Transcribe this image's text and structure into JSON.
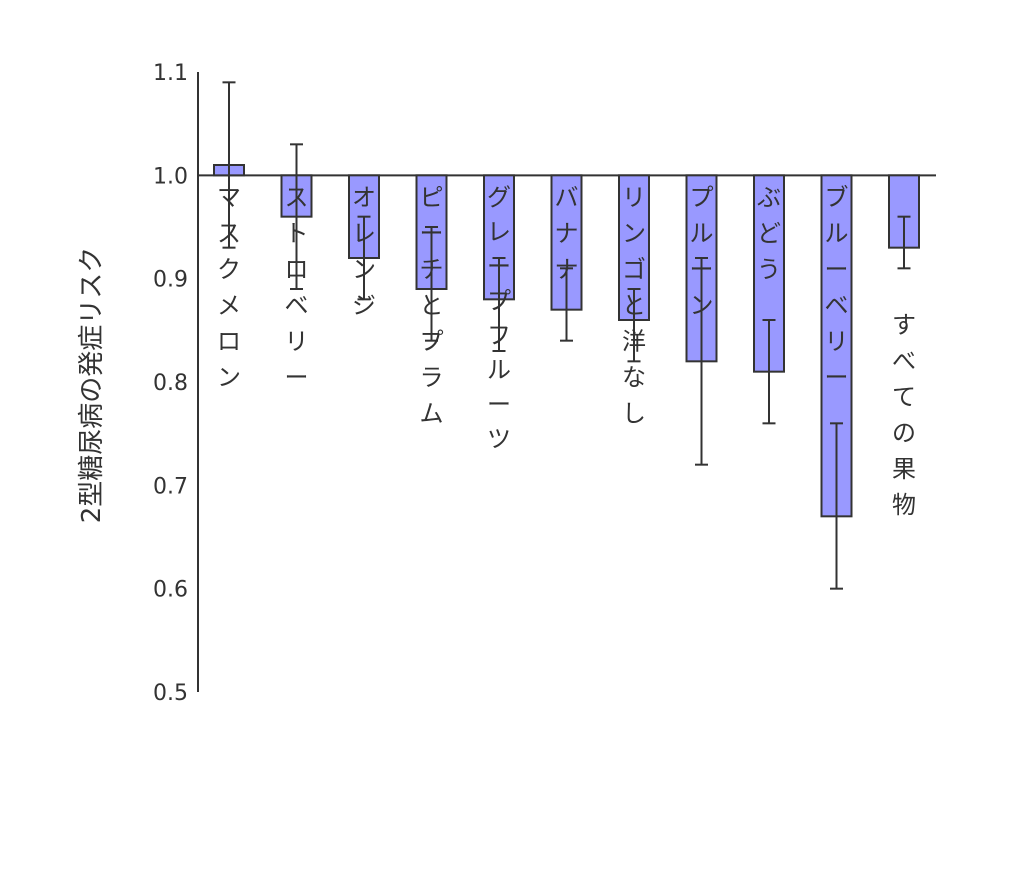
{
  "chart_data": {
    "type": "bar",
    "title": "",
    "xlabel": "",
    "ylabel": "2型糖尿病の発症リスク",
    "ylim": [
      0.5,
      1.1
    ],
    "yticks": [
      "0.5",
      "0.6",
      "0.7",
      "0.8",
      "0.9",
      "1.0",
      "1.1"
    ],
    "baseline": 1.0,
    "grid": false,
    "bar_color": "#9999ff",
    "categories": [
      "マスクメロン",
      "ストロベリー",
      "オレンジ",
      "ピーチとプラム",
      "グレープフルーツ",
      "バナナ",
      "リンゴと洋なし",
      "プルーン",
      "ぶどう",
      "ブルーベリー",
      "すべての果物"
    ],
    "values": [
      1.01,
      0.96,
      0.92,
      0.89,
      0.88,
      0.87,
      0.86,
      0.82,
      0.81,
      0.67,
      0.93
    ],
    "error_low": [
      0.93,
      0.89,
      0.88,
      0.84,
      0.83,
      0.84,
      0.82,
      0.72,
      0.76,
      0.6,
      0.91
    ],
    "error_high": [
      1.09,
      1.03,
      0.96,
      0.95,
      0.92,
      0.91,
      0.89,
      0.92,
      0.86,
      0.76,
      0.96
    ]
  }
}
